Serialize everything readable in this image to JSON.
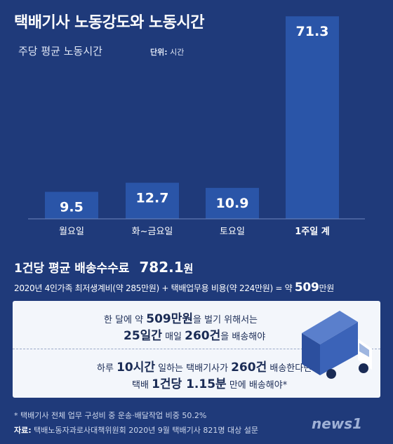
{
  "header": {
    "title": "택배기사 노동강도와 노동시간",
    "subtitle": "주당 평균 노동시간",
    "unit_label": "단위:",
    "unit_value": "시간"
  },
  "chart_data": {
    "type": "bar",
    "categories": [
      "월요일",
      "화~금요일",
      "토요일",
      "1주일 계"
    ],
    "values": [
      9.5,
      12.7,
      10.9,
      71.3
    ],
    "value_labels": [
      "9.5",
      "12.7",
      "10.9",
      "71.3"
    ],
    "title": "주당 평균 노동시간",
    "unit": "시간",
    "grid": false,
    "legend": "none",
    "bar_color": "#2a55a8"
  },
  "fee": {
    "label": "1건당 평균 배송수수료",
    "value": "782.1",
    "unit": "원"
  },
  "formula": {
    "text": "2020년 4인가족 최저생계비(약 285만원) + 택배업무용 비용(약 224만원) = 약",
    "value": "509",
    "unit": "만원"
  },
  "box": {
    "line1_a": "한 달에 약",
    "line1_b": "509만원",
    "line1_c": "을 벌기 위해서는",
    "line2_a": "25일간",
    "line2_b": "매일",
    "line2_c": "260건",
    "line2_d": "을 배송해야",
    "line3_a": "하루",
    "line3_b": "10시간",
    "line3_c": "일하는 택배기사가",
    "line3_d": "260건",
    "line3_e": "배송한다면",
    "line4_a": "택배",
    "line4_b": "1건당 1.15분",
    "line4_c": "만에 배송해야*"
  },
  "footer": {
    "note": "* 택배기사 전체 업무 구성비 중 운송·배달작업 비중 50.2%",
    "source_label": "자료:",
    "source": "택배노동자과로사대책위원회 2020년 9월 택배기사 821명 대상 설문",
    "logo": "news1"
  },
  "colors": {
    "background": "#1f3a7a",
    "bar": "#2a55a8",
    "box": "#f3f6fb",
    "truck": "#2c4f9e"
  },
  "icons": [
    "delivery-truck-icon"
  ]
}
